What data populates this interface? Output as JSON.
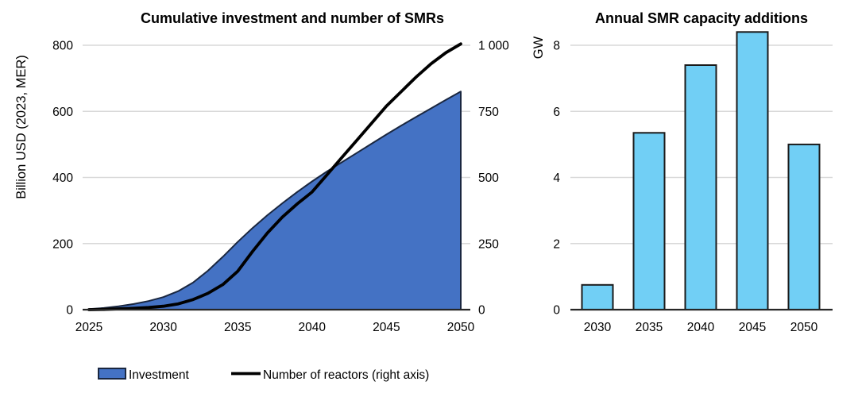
{
  "styles": {
    "gridline_color": "#D9D9D9",
    "axis_color": "#262626",
    "text_color": "#000000",
    "area_fill": "#4472C4",
    "area_outline": "#1A2740",
    "line_color": "#000000",
    "bar_fill": "#71CFF5",
    "bar_outline": "#1A1A1A",
    "background": "#FFFFFF"
  },
  "chart_data": [
    {
      "type": "area",
      "title": "Cumulative investment and number of SMRs",
      "ylabel_left": "Billion USD (2023, MER)",
      "grid": true,
      "legend_position": "bottom",
      "x": [
        2025,
        2026,
        2027,
        2028,
        2029,
        2030,
        2031,
        2032,
        2033,
        2034,
        2035,
        2036,
        2037,
        2038,
        2039,
        2040,
        2041,
        2042,
        2043,
        2044,
        2045,
        2046,
        2047,
        2048,
        2049,
        2050
      ],
      "series": [
        {
          "name": "Investment",
          "type": "area",
          "axis": "left",
          "color": "#4472C4",
          "values": [
            2,
            5,
            10,
            17,
            26,
            38,
            56,
            82,
            118,
            160,
            205,
            247,
            286,
            322,
            356,
            388,
            418,
            446,
            474,
            502,
            530,
            557,
            583,
            609,
            635,
            660
          ]
        },
        {
          "name": "Number of reactors (right axis)",
          "type": "line",
          "axis": "right",
          "color": "#000000",
          "values": [
            0,
            1,
            3,
            5,
            8,
            13,
            22,
            38,
            62,
            95,
            145,
            220,
            290,
            350,
            400,
            445,
            510,
            575,
            640,
            705,
            770,
            825,
            880,
            930,
            972,
            1005
          ]
        }
      ],
      "y_left": {
        "min": 0,
        "max": 800,
        "tick_values": [
          0,
          200,
          400,
          600,
          800
        ],
        "tick_labels": [
          "0",
          "200",
          "400",
          "600",
          "800"
        ]
      },
      "y_right": {
        "min": 0,
        "max": 1000,
        "tick_values": [
          0,
          250,
          500,
          750,
          1000
        ],
        "tick_labels": [
          "0",
          "250",
          "500",
          "750",
          "1 000"
        ]
      },
      "x_tick_values": [
        2025,
        2030,
        2035,
        2040,
        2045,
        2050
      ],
      "x_tick_labels": [
        "2025",
        "2030",
        "2035",
        "2040",
        "2045",
        "2050"
      ]
    },
    {
      "type": "bar",
      "title": "Annual SMR capacity additions",
      "ylabel": "GW",
      "grid": true,
      "categories": [
        "2030",
        "2035",
        "2040",
        "2045",
        "2050"
      ],
      "values": [
        0.75,
        5.35,
        7.4,
        8.4,
        5.0
      ],
      "ylim": [
        0,
        8.8
      ],
      "yticks": [
        0,
        2,
        4,
        6,
        8
      ],
      "ytick_labels": [
        "0",
        "2",
        "4",
        "6",
        "8"
      ]
    }
  ]
}
